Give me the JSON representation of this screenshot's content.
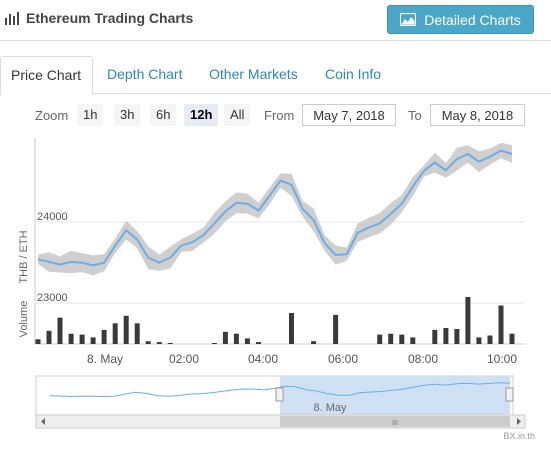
{
  "header": {
    "title": "Ethereum Trading Charts",
    "detailed_button": "Detailed Charts"
  },
  "tabs": [
    {
      "label": "Price Chart",
      "active": true
    },
    {
      "label": "Depth Chart",
      "active": false
    },
    {
      "label": "Other Markets",
      "active": false
    },
    {
      "label": "Coin Info",
      "active": false
    }
  ],
  "zoom": {
    "label": "Zoom",
    "options": [
      "1h",
      "3h",
      "6h",
      "12h",
      "All"
    ],
    "selected": "12h",
    "from_label": "From",
    "from_value": "May 7, 2018",
    "to_label": "To",
    "to_value": "May 8, 2018"
  },
  "chart": {
    "y_axis_label": "THB / ETH",
    "volume_label": "Volume",
    "y_ticks": [
      "24000",
      "23000"
    ],
    "x_ticks": [
      "8. May",
      "02:00",
      "04:00",
      "06:00",
      "08:00",
      "10:00"
    ],
    "navigator_label": "8. May",
    "scroll_grip": "III",
    "line_color": "#6aaee6",
    "band_color": "#cfcfcf",
    "volume_color": "#3a3a3a",
    "navigator_fill": "#cfe0f3"
  },
  "chart_data": {
    "type": "line",
    "series": [
      {
        "values": [
          23460,
          23430,
          23400,
          23430,
          23420,
          23390,
          23420,
          23620,
          23800,
          23690,
          23480,
          23420,
          23480,
          23620,
          23660,
          23740,
          23880,
          24020,
          24120,
          24110,
          24030,
          24200,
          24380,
          24330,
          24050,
          23920,
          23650,
          23510,
          23520,
          23770,
          23830,
          23880,
          23990,
          24110,
          24310,
          24490,
          24590,
          24500,
          24630,
          24690,
          24600,
          24660,
          24730,
          24690
        ]
      },
      {
        "values": [
          5,
          14,
          28,
          11,
          10,
          7,
          15,
          22,
          30,
          22,
          3,
          2,
          1,
          0,
          0,
          0,
          1,
          13,
          11,
          6,
          2,
          0,
          0,
          33,
          0,
          3,
          0,
          31,
          0,
          0,
          0,
          10,
          11,
          10,
          7,
          0,
          15,
          17,
          16,
          50,
          7,
          9,
          41,
          11
        ]
      }
    ],
    "ylim": [
      22950,
      24900
    ]
  },
  "footer": {
    "credit": "BX.in.th"
  }
}
